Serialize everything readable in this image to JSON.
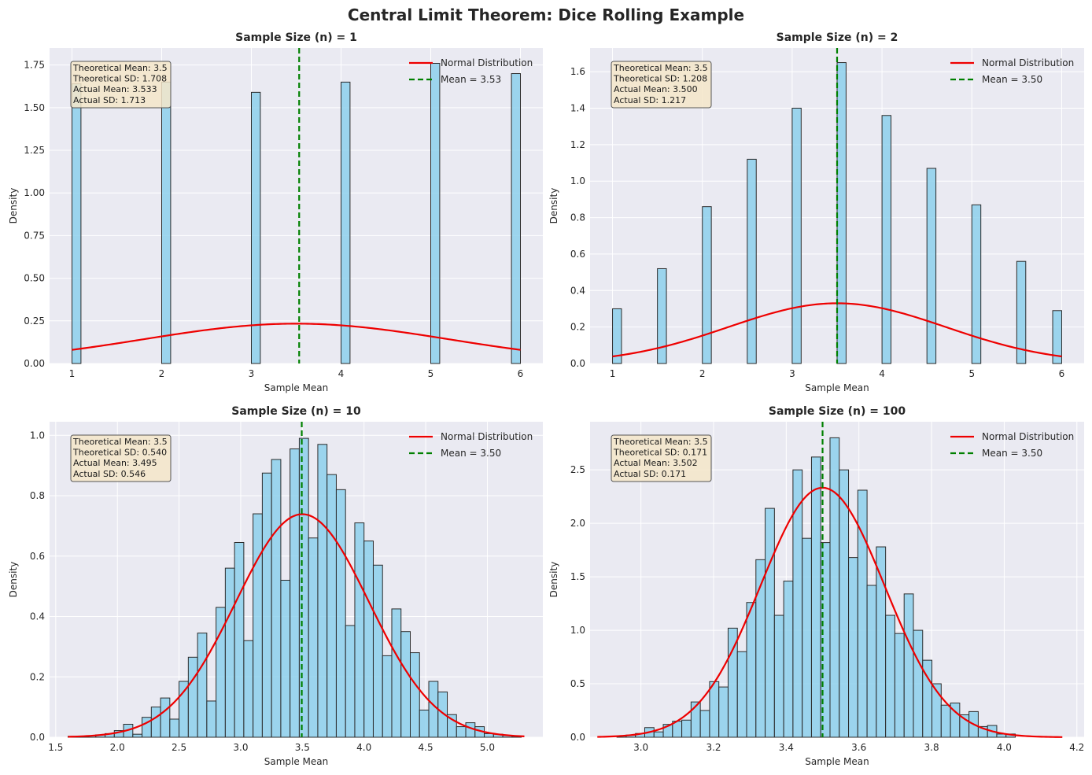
{
  "figure_title": "Central Limit Theorem: Dice Rolling Example",
  "colors": {
    "plot_bg": "#eaeaf2",
    "grid": "#ffffff",
    "bar_fill": "#87ceeb",
    "bar_edge": "#2b2b2b",
    "normal_curve": "#ee0000",
    "mean_line": "#008000",
    "stats_box_fill": "#f5e6c9",
    "stats_box_edge": "#555555"
  },
  "chart_data": [
    {
      "type": "bar",
      "title": "Sample Size (n) = 1",
      "xlabel": "Sample Mean",
      "ylabel": "Density",
      "xlim": [
        0.75,
        6.25
      ],
      "ylim": [
        0,
        1.85
      ],
      "xticks": [
        1,
        2,
        3,
        4,
        5,
        6
      ],
      "yticks": [
        0.0,
        0.25,
        0.5,
        0.75,
        1.0,
        1.25,
        1.5,
        1.75
      ],
      "ytick_labels": [
        "0.00",
        "0.25",
        "0.50",
        "0.75",
        "1.00",
        "1.25",
        "1.50",
        "1.75"
      ],
      "bin_width": 0.1,
      "bins": [
        {
          "x0": 1.0,
          "h": 1.64
        },
        {
          "x0": 2.0,
          "h": 1.65
        },
        {
          "x0": 3.0,
          "h": 1.59
        },
        {
          "x0": 4.0,
          "h": 1.65
        },
        {
          "x0": 5.0,
          "h": 1.76
        },
        {
          "x0": 5.9,
          "h": 1.7
        }
      ],
      "normal": {
        "mu": 3.5,
        "sigma": 1.708,
        "x_range": [
          1,
          6
        ]
      },
      "mean_line_x": 3.533,
      "legend": [
        "Normal Distribution",
        "Mean = 3.53"
      ],
      "stats": [
        "Theoretical Mean: 3.5",
        "Theoretical SD: 1.708",
        "Actual Mean: 3.533",
        "Actual SD: 1.713"
      ]
    },
    {
      "type": "bar",
      "title": "Sample Size (n) = 2",
      "xlabel": "Sample Mean",
      "ylabel": "Density",
      "xlim": [
        0.75,
        6.25
      ],
      "ylim": [
        0,
        1.73
      ],
      "xticks": [
        1,
        2,
        3,
        4,
        5,
        6
      ],
      "yticks": [
        0.0,
        0.2,
        0.4,
        0.6,
        0.8,
        1.0,
        1.2,
        1.4,
        1.6
      ],
      "ytick_labels": [
        "0.0",
        "0.2",
        "0.4",
        "0.6",
        "0.8",
        "1.0",
        "1.2",
        "1.4",
        "1.6"
      ],
      "bin_width": 0.1,
      "bins": [
        {
          "x0": 1.0,
          "h": 0.3
        },
        {
          "x0": 1.5,
          "h": 0.52
        },
        {
          "x0": 2.0,
          "h": 0.86
        },
        {
          "x0": 2.5,
          "h": 1.12
        },
        {
          "x0": 3.0,
          "h": 1.4
        },
        {
          "x0": 3.5,
          "h": 1.65
        },
        {
          "x0": 4.0,
          "h": 1.36
        },
        {
          "x0": 4.5,
          "h": 1.07
        },
        {
          "x0": 5.0,
          "h": 0.87
        },
        {
          "x0": 5.5,
          "h": 0.56
        },
        {
          "x0": 5.9,
          "h": 0.29
        }
      ],
      "normal": {
        "mu": 3.5,
        "sigma": 1.208,
        "x_range": [
          1,
          6
        ]
      },
      "mean_line_x": 3.5,
      "legend": [
        "Normal Distribution",
        "Mean = 3.50"
      ],
      "stats": [
        "Theoretical Mean: 3.5",
        "Theoretical SD: 1.208",
        "Actual Mean: 3.500",
        "Actual SD: 1.217"
      ]
    },
    {
      "type": "bar",
      "title": "Sample Size (n) = 10",
      "xlabel": "Sample Mean",
      "ylabel": "Density",
      "xlim": [
        1.45,
        5.45
      ],
      "ylim": [
        0,
        1.045
      ],
      "xticks": [
        1.5,
        2.0,
        2.5,
        3.0,
        3.5,
        4.0,
        4.5,
        5.0
      ],
      "xtick_labels": [
        "1.5",
        "2.0",
        "2.5",
        "3.0",
        "3.5",
        "4.0",
        "4.5",
        "5.0"
      ],
      "yticks": [
        0.0,
        0.2,
        0.4,
        0.6,
        0.8,
        1.0
      ],
      "ytick_labels": [
        "0.0",
        "0.2",
        "0.4",
        "0.6",
        "0.8",
        "1.0"
      ],
      "bin_width": 0.075,
      "bins": [
        {
          "x0": 1.6,
          "h": 0.003
        },
        {
          "x0": 1.675,
          "h": 0.003
        },
        {
          "x0": 1.75,
          "h": 0.005
        },
        {
          "x0": 1.825,
          "h": 0.008
        },
        {
          "x0": 1.9,
          "h": 0.012
        },
        {
          "x0": 1.975,
          "h": 0.022
        },
        {
          "x0": 2.05,
          "h": 0.043
        },
        {
          "x0": 2.125,
          "h": 0.01
        },
        {
          "x0": 2.2,
          "h": 0.066
        },
        {
          "x0": 2.275,
          "h": 0.1
        },
        {
          "x0": 2.35,
          "h": 0.13
        },
        {
          "x0": 2.425,
          "h": 0.06
        },
        {
          "x0": 2.5,
          "h": 0.185
        },
        {
          "x0": 2.575,
          "h": 0.265
        },
        {
          "x0": 2.65,
          "h": 0.345
        },
        {
          "x0": 2.725,
          "h": 0.12
        },
        {
          "x0": 2.8,
          "h": 0.43
        },
        {
          "x0": 2.875,
          "h": 0.56
        },
        {
          "x0": 2.95,
          "h": 0.645
        },
        {
          "x0": 3.025,
          "h": 0.32
        },
        {
          "x0": 3.1,
          "h": 0.74
        },
        {
          "x0": 3.175,
          "h": 0.875
        },
        {
          "x0": 3.25,
          "h": 0.92
        },
        {
          "x0": 3.325,
          "h": 0.52
        },
        {
          "x0": 3.4,
          "h": 0.955
        },
        {
          "x0": 3.475,
          "h": 0.99
        },
        {
          "x0": 3.55,
          "h": 0.66
        },
        {
          "x0": 3.625,
          "h": 0.97
        },
        {
          "x0": 3.7,
          "h": 0.87
        },
        {
          "x0": 3.775,
          "h": 0.82
        },
        {
          "x0": 3.85,
          "h": 0.37
        },
        {
          "x0": 3.925,
          "h": 0.71
        },
        {
          "x0": 4.0,
          "h": 0.65
        },
        {
          "x0": 4.075,
          "h": 0.57
        },
        {
          "x0": 4.15,
          "h": 0.27
        },
        {
          "x0": 4.225,
          "h": 0.425
        },
        {
          "x0": 4.3,
          "h": 0.35
        },
        {
          "x0": 4.375,
          "h": 0.28
        },
        {
          "x0": 4.45,
          "h": 0.09
        },
        {
          "x0": 4.525,
          "h": 0.185
        },
        {
          "x0": 4.6,
          "h": 0.15
        },
        {
          "x0": 4.675,
          "h": 0.075
        },
        {
          "x0": 4.75,
          "h": 0.035
        },
        {
          "x0": 4.825,
          "h": 0.048
        },
        {
          "x0": 4.9,
          "h": 0.035
        },
        {
          "x0": 4.975,
          "h": 0.012
        },
        {
          "x0": 5.05,
          "h": 0.01
        },
        {
          "x0": 5.125,
          "h": 0.006
        },
        {
          "x0": 5.2,
          "h": 0.003
        }
      ],
      "normal": {
        "mu": 3.5,
        "sigma": 0.54,
        "x_range": [
          1.6,
          5.3
        ]
      },
      "mean_line_x": 3.495,
      "legend": [
        "Normal Distribution",
        "Mean = 3.50"
      ],
      "stats": [
        "Theoretical Mean: 3.5",
        "Theoretical SD: 0.540",
        "Actual Mean: 3.495",
        "Actual SD: 0.546"
      ]
    },
    {
      "type": "bar",
      "title": "Sample Size (n) = 100",
      "xlabel": "Sample Mean",
      "ylabel": "Density",
      "xlim": [
        2.86,
        4.22
      ],
      "ylim": [
        0,
        2.95
      ],
      "xticks": [
        3.0,
        3.2,
        3.4,
        3.6,
        3.8,
        4.0,
        4.2
      ],
      "xtick_labels": [
        "3.0",
        "3.2",
        "3.4",
        "3.6",
        "3.8",
        "4.0",
        "4.2"
      ],
      "yticks": [
        0.0,
        0.5,
        1.0,
        1.5,
        2.0,
        2.5
      ],
      "ytick_labels": [
        "0.0",
        "0.5",
        "1.0",
        "1.5",
        "2.0",
        "2.5"
      ],
      "bin_width": 0.0255,
      "bins": [
        {
          "x0": 2.934,
          "h": 0.01
        },
        {
          "x0": 2.9595,
          "h": 0.02
        },
        {
          "x0": 2.985,
          "h": 0.035
        },
        {
          "x0": 3.0105,
          "h": 0.09
        },
        {
          "x0": 3.036,
          "h": 0.05
        },
        {
          "x0": 3.0615,
          "h": 0.12
        },
        {
          "x0": 3.087,
          "h": 0.15
        },
        {
          "x0": 3.1125,
          "h": 0.16
        },
        {
          "x0": 3.138,
          "h": 0.33
        },
        {
          "x0": 3.1635,
          "h": 0.25
        },
        {
          "x0": 3.189,
          "h": 0.52
        },
        {
          "x0": 3.2145,
          "h": 0.47
        },
        {
          "x0": 3.24,
          "h": 1.02
        },
        {
          "x0": 3.2655,
          "h": 0.8
        },
        {
          "x0": 3.291,
          "h": 1.26
        },
        {
          "x0": 3.3165,
          "h": 1.66
        },
        {
          "x0": 3.342,
          "h": 2.14
        },
        {
          "x0": 3.3675,
          "h": 1.14
        },
        {
          "x0": 3.393,
          "h": 1.46
        },
        {
          "x0": 3.4185,
          "h": 2.5
        },
        {
          "x0": 3.444,
          "h": 1.86
        },
        {
          "x0": 3.4695,
          "h": 2.62
        },
        {
          "x0": 3.495,
          "h": 1.82
        },
        {
          "x0": 3.5205,
          "h": 2.8
        },
        {
          "x0": 3.546,
          "h": 2.5
        },
        {
          "x0": 3.5715,
          "h": 1.68
        },
        {
          "x0": 3.597,
          "h": 2.31
        },
        {
          "x0": 3.6225,
          "h": 1.42
        },
        {
          "x0": 3.648,
          "h": 1.78
        },
        {
          "x0": 3.6735,
          "h": 1.14
        },
        {
          "x0": 3.699,
          "h": 0.97
        },
        {
          "x0": 3.7245,
          "h": 1.34
        },
        {
          "x0": 3.75,
          "h": 1.0
        },
        {
          "x0": 3.7755,
          "h": 0.72
        },
        {
          "x0": 3.801,
          "h": 0.5
        },
        {
          "x0": 3.8265,
          "h": 0.3
        },
        {
          "x0": 3.852,
          "h": 0.32
        },
        {
          "x0": 3.8775,
          "h": 0.21
        },
        {
          "x0": 3.903,
          "h": 0.24
        },
        {
          "x0": 3.9285,
          "h": 0.1
        },
        {
          "x0": 3.954,
          "h": 0.11
        },
        {
          "x0": 3.9795,
          "h": 0.03
        },
        {
          "x0": 4.005,
          "h": 0.03
        }
      ],
      "normal": {
        "mu": 3.5,
        "sigma": 0.171,
        "x_range": [
          2.88,
          4.16
        ]
      },
      "mean_line_x": 3.5,
      "legend": [
        "Normal Distribution",
        "Mean = 3.50"
      ],
      "stats": [
        "Theoretical Mean: 3.5",
        "Theoretical SD: 0.171",
        "Actual Mean: 3.502",
        "Actual SD: 0.171"
      ]
    }
  ]
}
